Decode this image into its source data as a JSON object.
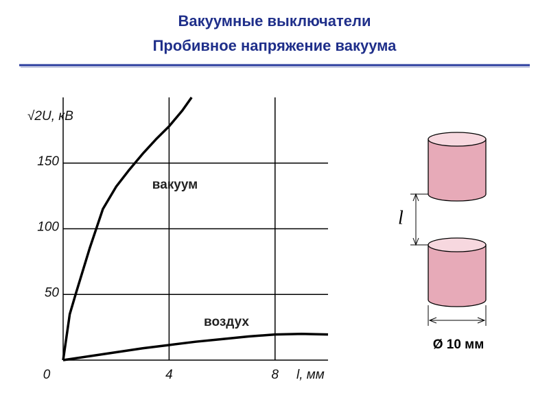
{
  "header": {
    "title": [
      "Вакуумные выключатели",
      "Пробивное напряжение вакуума"
    ]
  },
  "chart_data": {
    "type": "line",
    "x_label": "l, мм",
    "y_label": "√2U, кВ",
    "xlim": [
      0,
      10
    ],
    "ylim": [
      0,
      200
    ],
    "xticks": [
      0,
      4,
      8
    ],
    "yticks": [
      50,
      100,
      150
    ],
    "grid": true,
    "series": [
      {
        "name": "вакуум",
        "color": "#000000",
        "x": [
          0,
          0.25,
          0.5,
          1,
          1.5,
          2,
          2.5,
          3,
          3.5,
          4,
          4.5,
          4.85
        ],
        "values": [
          0,
          35,
          52,
          85,
          115,
          132,
          145,
          157,
          168,
          178,
          190,
          200
        ]
      },
      {
        "name": "воздух",
        "color": "#000000",
        "x": [
          0,
          1,
          2,
          3,
          4,
          5,
          6,
          7,
          8,
          9,
          10
        ],
        "values": [
          0,
          3,
          6,
          9,
          11.5,
          14,
          16,
          18,
          19.5,
          20,
          19.5
        ]
      }
    ]
  },
  "diagram": {
    "gap_label": "l",
    "diameter_label": "Ø 10 мм"
  }
}
